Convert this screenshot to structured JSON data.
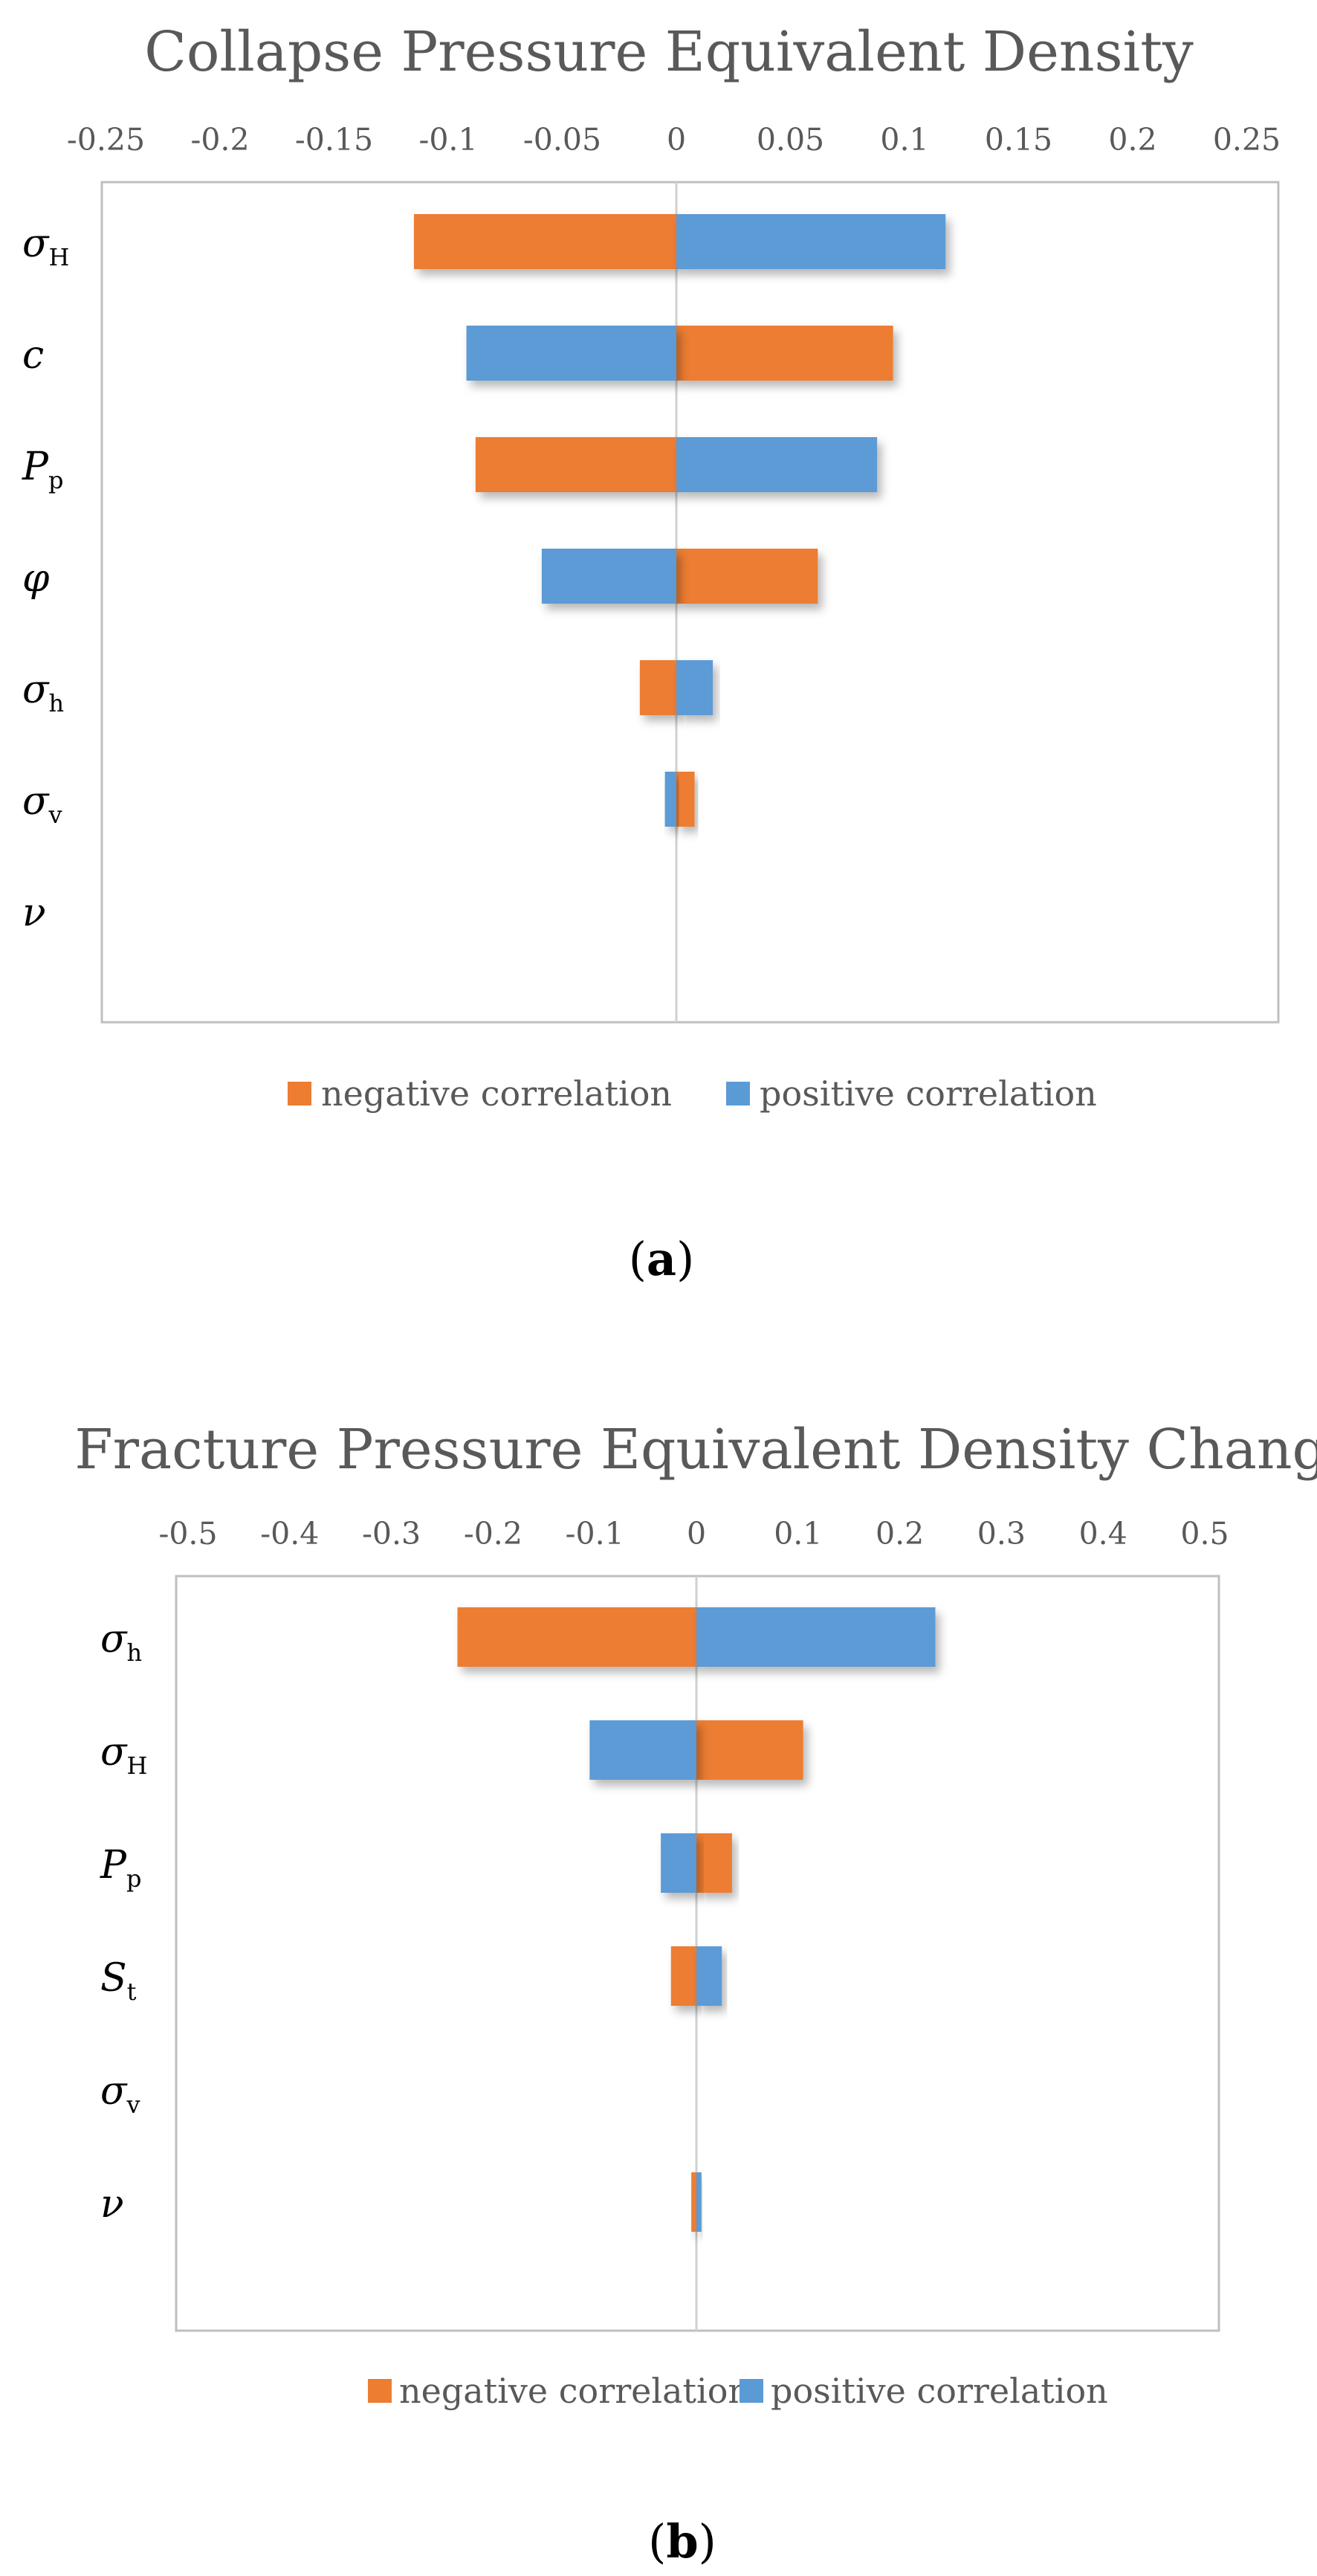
{
  "colors": {
    "negative": "#ED7D31",
    "positive": "#5B9BD5",
    "frame": "#BFBFBF",
    "text": "#595959"
  },
  "chart_data": [
    {
      "type": "bar",
      "orientation": "horizontal",
      "title": "Collapse Pressure Equivalent Density",
      "xlim": [
        -0.25,
        0.25
      ],
      "ticks": [
        "-0.25",
        "-0.2",
        "-0.15",
        "-0.1",
        "-0.05",
        "0",
        "0.05",
        "0.1",
        "0.15",
        "0.2",
        "0.25"
      ],
      "tick_values": [
        -0.25,
        -0.2,
        -0.15,
        -0.1,
        -0.05,
        0,
        0.05,
        0.1,
        0.15,
        0.2,
        0.25
      ],
      "categories": [
        {
          "main": "σ",
          "sub": "H"
        },
        {
          "main": "c",
          "sub": ""
        },
        {
          "main": "P",
          "sub": "p"
        },
        {
          "main": "φ",
          "sub": ""
        },
        {
          "main": "σ",
          "sub": "h"
        },
        {
          "main": "σ",
          "sub": "v"
        },
        {
          "main": "ν",
          "sub": ""
        }
      ],
      "series": [
        {
          "name": "negative correlation",
          "color": "#ED7D31",
          "values": [
            -0.115,
            0.095,
            -0.088,
            0.062,
            -0.016,
            0.008,
            0
          ]
        },
        {
          "name": "positive correlation",
          "color": "#5B9BD5",
          "values": [
            0.118,
            -0.092,
            0.088,
            -0.059,
            0.016,
            -0.005,
            0
          ]
        }
      ],
      "legend": {
        "position": "bottom",
        "items": [
          "negative correlation",
          "positive correlation"
        ]
      },
      "panel_label": {
        "letter": "a",
        "open": "(",
        "close": ")"
      }
    },
    {
      "type": "bar",
      "orientation": "horizontal",
      "title": "Fracture Pressure Equivalent Density Change",
      "xlim": [
        -0.5,
        0.5
      ],
      "ticks": [
        "-0.5",
        "-0.4",
        "-0.3",
        "-0.2",
        "-0.1",
        "0",
        "0.1",
        "0.2",
        "0.3",
        "0.4",
        "0.5"
      ],
      "tick_values": [
        -0.5,
        -0.4,
        -0.3,
        -0.2,
        -0.1,
        0,
        0.1,
        0.2,
        0.3,
        0.4,
        0.5
      ],
      "categories": [
        {
          "main": "σ",
          "sub": "h"
        },
        {
          "main": "σ",
          "sub": "H"
        },
        {
          "main": "P",
          "sub": "p"
        },
        {
          "main": "S",
          "sub": "t"
        },
        {
          "main": "σ",
          "sub": "v"
        },
        {
          "main": "ν",
          "sub": ""
        }
      ],
      "series": [
        {
          "name": "negative correlation",
          "color": "#ED7D31",
          "values": [
            -0.235,
            0.105,
            0.035,
            -0.025,
            0,
            -0.005
          ]
        },
        {
          "name": "positive correlation",
          "color": "#5B9BD5",
          "values": [
            0.235,
            -0.105,
            -0.035,
            0.025,
            0,
            0.005
          ]
        }
      ],
      "legend": {
        "position": "bottom",
        "items": [
          "negative correlation",
          "positive correlation"
        ]
      },
      "panel_label": {
        "letter": "b",
        "open": "(",
        "close": ")"
      }
    }
  ]
}
